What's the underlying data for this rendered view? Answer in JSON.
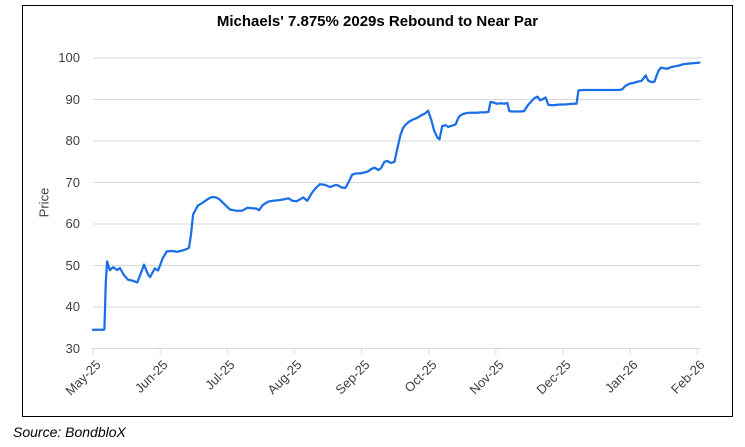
{
  "source": "Source: BondbloX",
  "colors": {
    "line": "#1a6ee8",
    "grid": "#d9d9d9",
    "axis_text": "#3f3f3f",
    "title_text": "#000000",
    "frame": "#000000"
  },
  "chart_data": {
    "type": "line",
    "title": "Michaels' 7.875% 2029s Rebound to Near Par",
    "xlabel": "",
    "ylabel": "Price",
    "ylim": [
      30,
      100
    ],
    "y_ticks": [
      30,
      40,
      50,
      60,
      70,
      80,
      90,
      100
    ],
    "x_tick_labels": [
      "May-25",
      "Jun-25",
      "Jul-25",
      "Aug-25",
      "Sep-25",
      "Oct-25",
      "Nov-25",
      "Dec-25",
      "Jan-26",
      "Feb-26"
    ],
    "grid": true,
    "legend_position": "none",
    "series": [
      {
        "name": "Price",
        "x_unit": "month-index (0 = May-25 tick, 9 = Feb-26 tick)",
        "points": [
          [
            0,
            34.5
          ],
          [
            0.15,
            34.5
          ],
          [
            0.17,
            34.6
          ],
          [
            0.19,
            46
          ],
          [
            0.21,
            51
          ],
          [
            0.25,
            48.9
          ],
          [
            0.3,
            49.6
          ],
          [
            0.36,
            48.9
          ],
          [
            0.4,
            49.4
          ],
          [
            0.46,
            47.7
          ],
          [
            0.52,
            46.6
          ],
          [
            0.6,
            46.3
          ],
          [
            0.66,
            45.9
          ],
          [
            0.73,
            48.9
          ],
          [
            0.76,
            50.2
          ],
          [
            0.82,
            47.8
          ],
          [
            0.85,
            47.2
          ],
          [
            0.92,
            49.3
          ],
          [
            0.97,
            48.8
          ],
          [
            1.04,
            51.8
          ],
          [
            1.1,
            53.4
          ],
          [
            1.18,
            53.5
          ],
          [
            1.25,
            53.3
          ],
          [
            1.33,
            53.6
          ],
          [
            1.4,
            54
          ],
          [
            1.43,
            54.3
          ],
          [
            1.46,
            57.5
          ],
          [
            1.49,
            62.3
          ],
          [
            1.56,
            64.4
          ],
          [
            1.64,
            65.2
          ],
          [
            1.71,
            66
          ],
          [
            1.77,
            66.5
          ],
          [
            1.83,
            66.4
          ],
          [
            1.88,
            66
          ],
          [
            1.95,
            64.9
          ],
          [
            2.04,
            63.5
          ],
          [
            2.13,
            63.2
          ],
          [
            2.22,
            63.2
          ],
          [
            2.3,
            63.9
          ],
          [
            2.37,
            63.8
          ],
          [
            2.44,
            63.7
          ],
          [
            2.47,
            63.3
          ],
          [
            2.53,
            64.6
          ],
          [
            2.61,
            65.4
          ],
          [
            2.68,
            65.6
          ],
          [
            2.76,
            65.7
          ],
          [
            2.83,
            65.9
          ],
          [
            2.91,
            66.2
          ],
          [
            2.97,
            65.6
          ],
          [
            3.03,
            65.5
          ],
          [
            3.09,
            66
          ],
          [
            3.13,
            66.4
          ],
          [
            3.19,
            65.6
          ],
          [
            3.26,
            67.5
          ],
          [
            3.32,
            68.7
          ],
          [
            3.38,
            69.6
          ],
          [
            3.46,
            69.4
          ],
          [
            3.53,
            68.9
          ],
          [
            3.61,
            69.4
          ],
          [
            3.65,
            69.3
          ],
          [
            3.7,
            68.8
          ],
          [
            3.76,
            68.7
          ],
          [
            3.82,
            70.5
          ],
          [
            3.86,
            71.9
          ],
          [
            3.92,
            72.2
          ],
          [
            3.98,
            72.2
          ],
          [
            4.04,
            72.4
          ],
          [
            4.1,
            72.7
          ],
          [
            4.14,
            73.2
          ],
          [
            4.19,
            73.6
          ],
          [
            4.25,
            73
          ],
          [
            4.29,
            73.5
          ],
          [
            4.34,
            75
          ],
          [
            4.38,
            75.2
          ],
          [
            4.44,
            74.7
          ],
          [
            4.49,
            75
          ],
          [
            4.53,
            78
          ],
          [
            4.58,
            81.5
          ],
          [
            4.62,
            83.2
          ],
          [
            4.66,
            84
          ],
          [
            4.71,
            84.7
          ],
          [
            4.77,
            85.2
          ],
          [
            4.83,
            85.6
          ],
          [
            4.89,
            86.2
          ],
          [
            4.95,
            86.7
          ],
          [
            4.99,
            87.3
          ],
          [
            5.04,
            85
          ],
          [
            5.08,
            82.5
          ],
          [
            5.13,
            80.8
          ],
          [
            5.16,
            80.4
          ],
          [
            5.2,
            83.6
          ],
          [
            5.25,
            83.8
          ],
          [
            5.29,
            83.4
          ],
          [
            5.35,
            83.7
          ],
          [
            5.4,
            84
          ],
          [
            5.44,
            85.6
          ],
          [
            5.48,
            86.3
          ],
          [
            5.53,
            86.6
          ],
          [
            5.59,
            86.8
          ],
          [
            5.65,
            86.8
          ],
          [
            5.71,
            86.8
          ],
          [
            5.77,
            86.9
          ],
          [
            5.83,
            86.9
          ],
          [
            5.89,
            87
          ],
          [
            5.92,
            89.4
          ],
          [
            5.96,
            89.3
          ],
          [
            6.01,
            89
          ],
          [
            6.07,
            89.1
          ],
          [
            6.13,
            89
          ],
          [
            6.17,
            89.2
          ],
          [
            6.2,
            87.2
          ],
          [
            6.24,
            87.1
          ],
          [
            6.3,
            87.1
          ],
          [
            6.36,
            87.1
          ],
          [
            6.42,
            87.2
          ],
          [
            6.48,
            88.7
          ],
          [
            6.53,
            89.6
          ],
          [
            6.57,
            90.3
          ],
          [
            6.62,
            90.7
          ],
          [
            6.66,
            89.8
          ],
          [
            6.71,
            90.2
          ],
          [
            6.74,
            90.5
          ],
          [
            6.78,
            88.7
          ],
          [
            6.84,
            88.6
          ],
          [
            6.9,
            88.7
          ],
          [
            6.96,
            88.8
          ],
          [
            7.02,
            88.8
          ],
          [
            7.08,
            88.9
          ],
          [
            7.14,
            89
          ],
          [
            7.2,
            89
          ],
          [
            7.23,
            92.2
          ],
          [
            7.3,
            92.3
          ],
          [
            7.38,
            92.3
          ],
          [
            7.45,
            92.3
          ],
          [
            7.53,
            92.3
          ],
          [
            7.6,
            92.3
          ],
          [
            7.68,
            92.3
          ],
          [
            7.75,
            92.3
          ],
          [
            7.82,
            92.3
          ],
          [
            7.88,
            92.4
          ],
          [
            7.93,
            93.3
          ],
          [
            7.99,
            93.8
          ],
          [
            8.05,
            94
          ],
          [
            8.11,
            94.3
          ],
          [
            8.17,
            94.5
          ],
          [
            8.23,
            95.8
          ],
          [
            8.27,
            94.5
          ],
          [
            8.32,
            94.2
          ],
          [
            8.36,
            94.3
          ],
          [
            8.42,
            96.9
          ],
          [
            8.46,
            97.7
          ],
          [
            8.51,
            97.5
          ],
          [
            8.55,
            97.4
          ],
          [
            8.61,
            97.8
          ],
          [
            8.67,
            98
          ],
          [
            8.73,
            98.2
          ],
          [
            8.79,
            98.5
          ],
          [
            8.85,
            98.6
          ],
          [
            8.91,
            98.7
          ],
          [
            8.97,
            98.8
          ],
          [
            9.03,
            98.9
          ]
        ]
      }
    ]
  }
}
